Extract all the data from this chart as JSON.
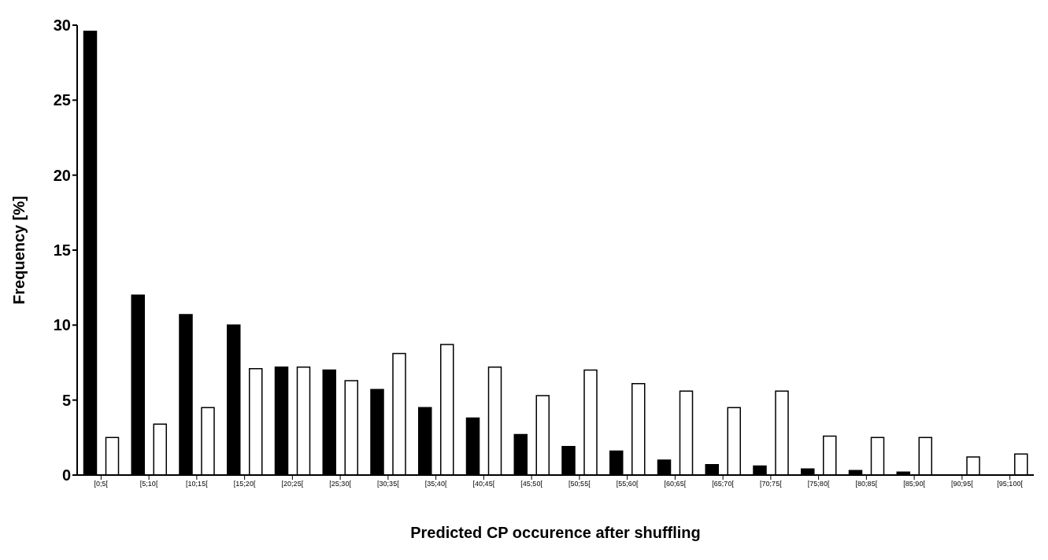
{
  "chart_data": {
    "type": "bar",
    "xlabel": "Predicted CP occurence after shuffling",
    "ylabel": "Frequency [%]",
    "categories": [
      "[0;5[",
      "[5;10[",
      "[10;15[",
      "[15;20[",
      "[20;25[",
      "[25;30[",
      "[30;35[",
      "[35;40[",
      "[40;45[",
      "[45;50[",
      "[50;55[",
      "[55;60[",
      "[60;65[",
      "[65;70[",
      "[70;75[",
      "[75;80[",
      "[80;85[",
      "[85;90[",
      "[90;95[",
      "[95;100["
    ],
    "series": [
      {
        "color": "#000000",
        "values": [
          29.6,
          12.0,
          10.7,
          10.0,
          7.2,
          7.0,
          5.7,
          4.5,
          3.8,
          2.7,
          1.9,
          1.6,
          1.0,
          0.7,
          0.6,
          0.4,
          0.3,
          0.2,
          0,
          0
        ]
      },
      {
        "color": "#ffffff",
        "values": [
          2.5,
          3.4,
          4.5,
          7.1,
          7.2,
          6.3,
          8.1,
          8.7,
          7.2,
          5.3,
          7.0,
          6.1,
          5.6,
          4.5,
          5.6,
          2.6,
          2.5,
          2.5,
          1.2,
          1.4
        ]
      }
    ],
    "ylim": [
      0,
      30
    ],
    "yticks": [
      0,
      5,
      10,
      15,
      20,
      25,
      30
    ],
    "grid": false,
    "legend": false
  }
}
